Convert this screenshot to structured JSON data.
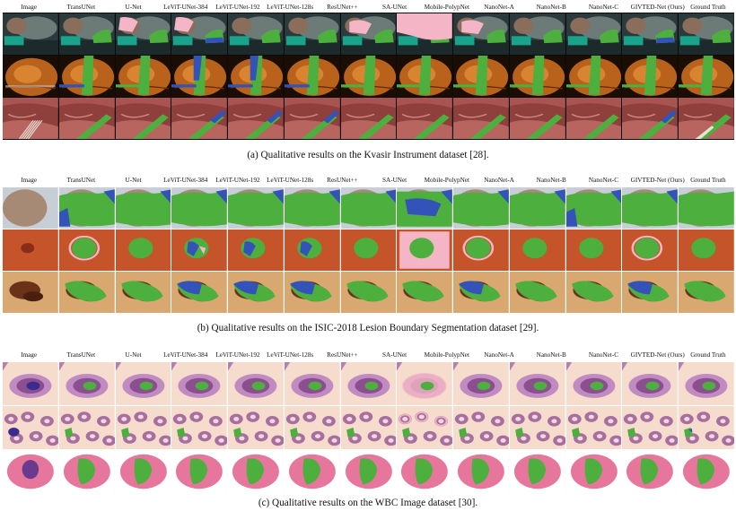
{
  "columns": [
    "Image",
    "TransUNet",
    "U-Net",
    "LeViT-UNet-384",
    "LeViT-UNet-192",
    "LeViT-UNet-128s",
    "ResUNet++",
    "SA-UNet",
    "Mobile-PolypNet",
    "NanoNet-A",
    "NanoNet-B",
    "NanoNet-C",
    "GIVTED-Net (Ours)",
    "Ground Truth"
  ],
  "panels": [
    {
      "id": "kvasir",
      "caption": "(a)  Qualitative results on the Kvasir Instrument dataset [28]."
    },
    {
      "id": "isic",
      "caption": "(b)  Qualitative results on the ISIC-2018 Lesion Boundary Segmentation dataset [29]."
    },
    {
      "id": "wbc",
      "caption": "(c)  Qualitative results on the WBC Image dataset [30]."
    }
  ],
  "colors": {
    "true_positive": "#4caf3e",
    "false_negative": "#3453b8",
    "false_positive": "#f4b6c6"
  }
}
